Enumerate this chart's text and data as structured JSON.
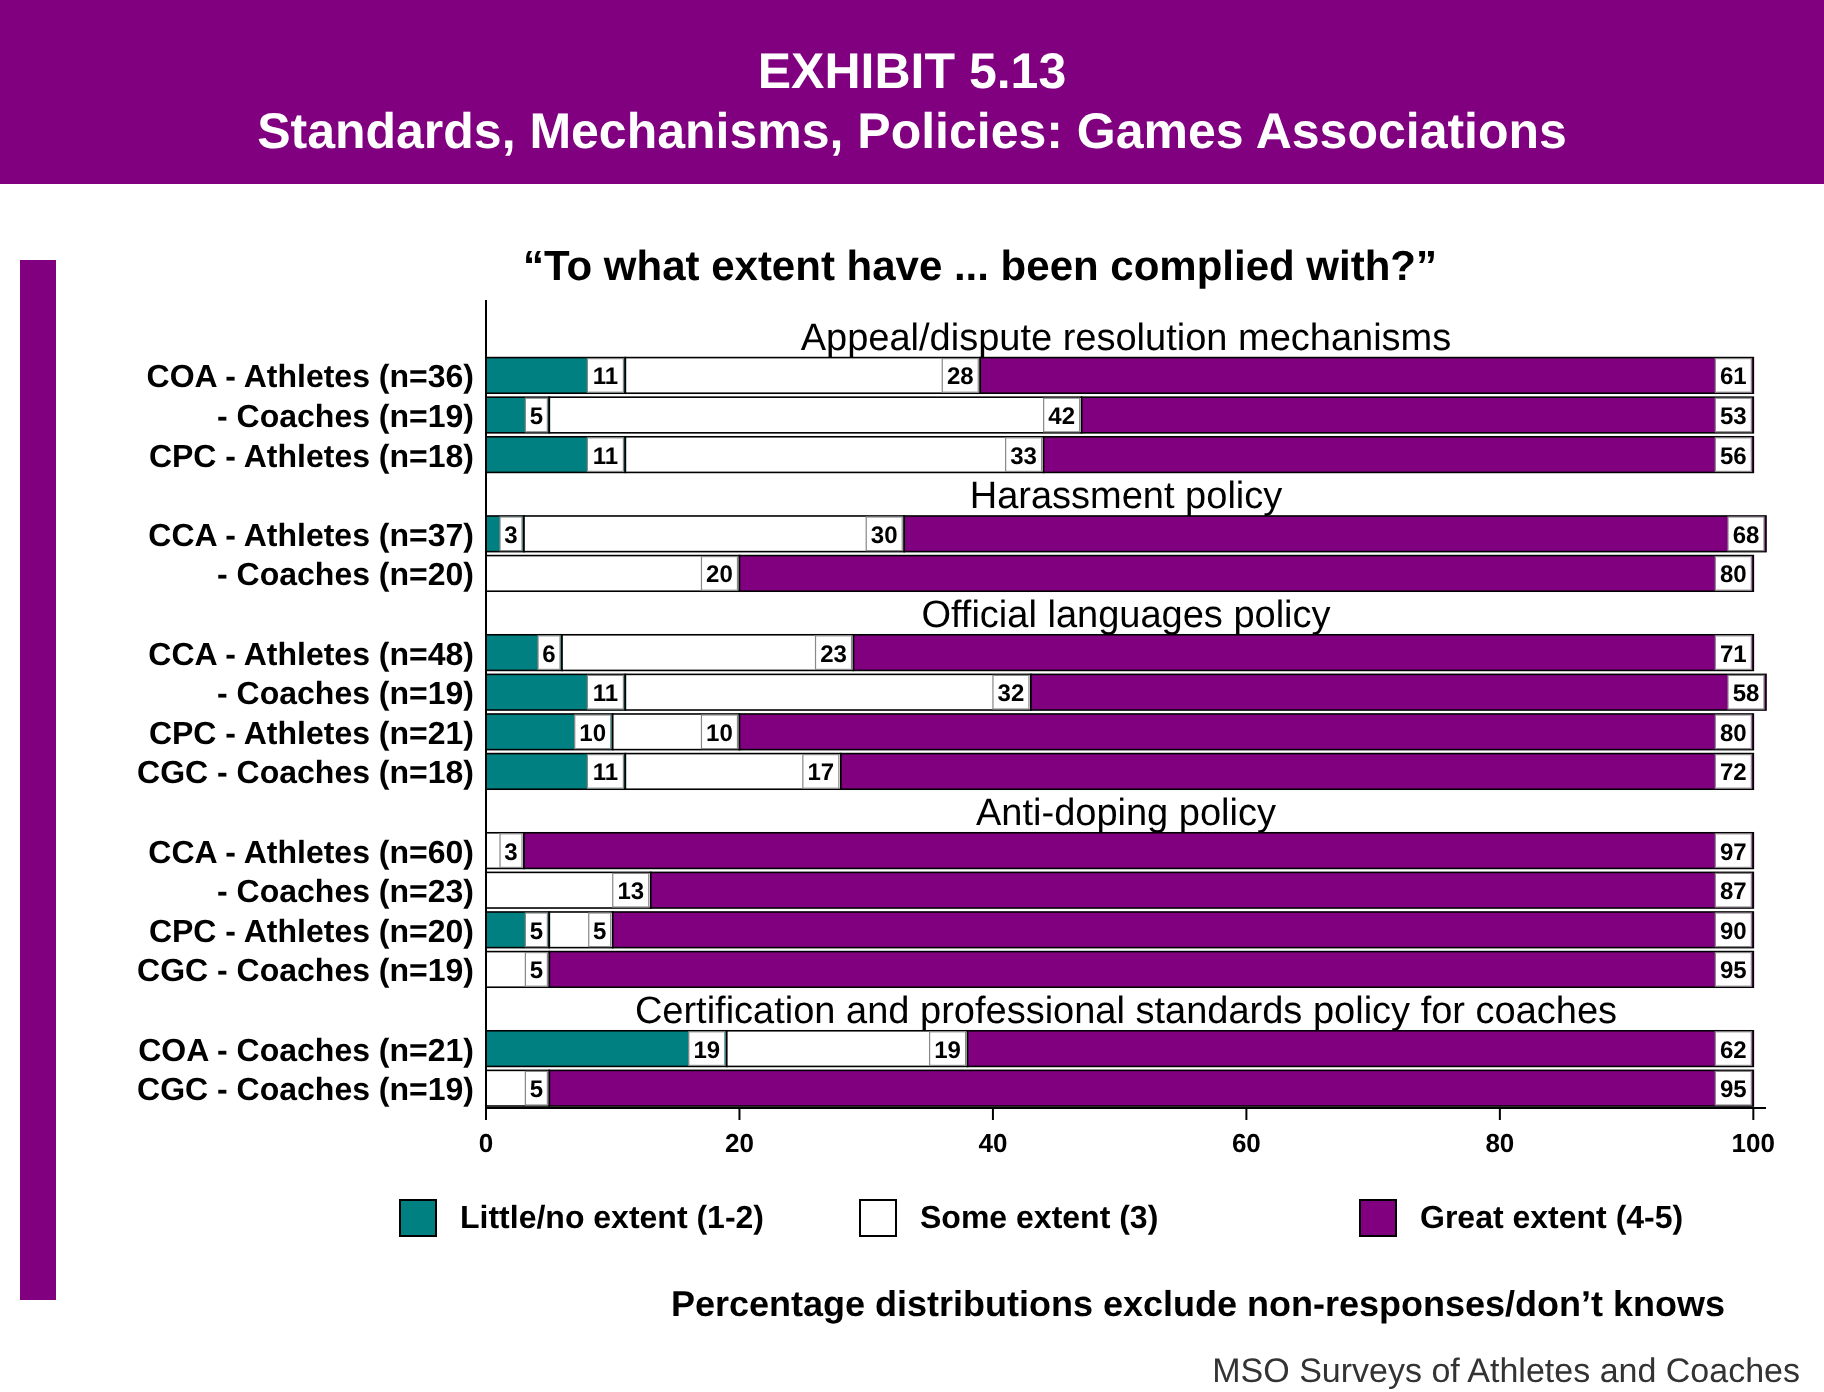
{
  "chart_data": {
    "type": "bar",
    "orientation": "horizontal",
    "stacked": true,
    "title": "EXHIBIT 5.13\nStandards, Mechanisms, Policies: Games Associations",
    "subtitle": "“To what extent have ... been complied with?”",
    "categories": [
      null,
      "COA - Athletes (n=36)",
      "- Coaches (n=19)",
      "CPC - Athletes (n=18)",
      null,
      "CCA - Athletes (n=37)",
      "- Coaches (n=20)",
      null,
      "CCA - Athletes (n=48)",
      "- Coaches (n=19)",
      "CPC - Athletes (n=21)",
      "CGC - Coaches (n=18)",
      null,
      "CCA - Athletes (n=60)",
      "- Coaches (n=23)",
      "CPC - Athletes (n=20)",
      "CGC - Coaches (n=19)",
      null,
      "COA - Coaches (n=21)",
      "CGC - Coaches (n=19)"
    ],
    "series": [
      {
        "name": "Little/no extent (1-2)",
        "color": "#008080",
        "values": [
          null,
          11,
          5,
          11,
          null,
          3,
          null,
          null,
          6,
          11,
          10,
          11,
          null,
          null,
          null,
          5,
          null,
          null,
          19,
          null
        ]
      },
      {
        "name": "Some extent (3)",
        "color": "#ffffff",
        "values": [
          null,
          28,
          42,
          33,
          null,
          30,
          20,
          null,
          23,
          32,
          10,
          17,
          null,
          3,
          13,
          5,
          5,
          null,
          19,
          5
        ]
      },
      {
        "name": "Great extent (4-5)",
        "color": "#800080",
        "values": [
          null,
          61,
          53,
          56,
          null,
          68,
          80,
          null,
          71,
          58,
          80,
          72,
          null,
          97,
          87,
          90,
          95,
          null,
          62,
          95
        ]
      }
    ],
    "xlim": [
      0,
      101
    ],
    "xticks": [
      0,
      20,
      40,
      60,
      80,
      100
    ],
    "data_labels": true,
    "legend": "bottom",
    "grid": false,
    "annotations": [
      "Appeal/dispute resolution mechanisms",
      "Harassment policy",
      "Official languages policy",
      "Anti-doping policy",
      "Certification and professional standards policy for coaches",
      "Percentage distributions exclude non-responses/don’t knows",
      "MSO Surveys of Athletes and Coaches"
    ]
  }
}
